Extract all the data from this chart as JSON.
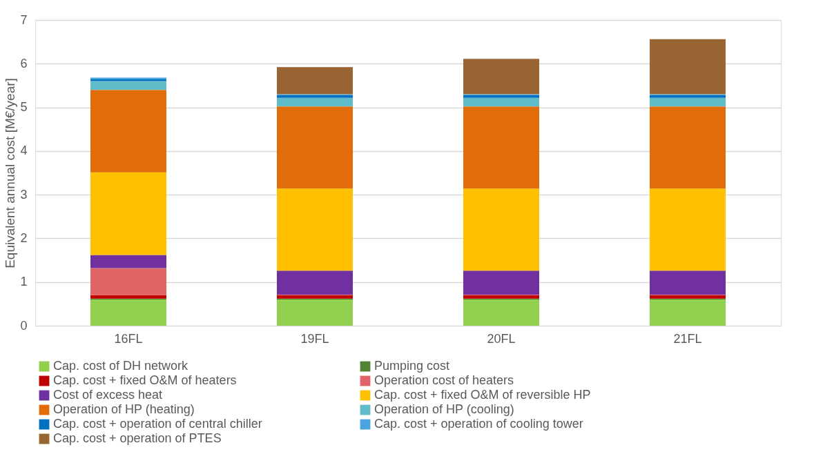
{
  "chart_data": {
    "type": "bar",
    "stacked": true,
    "ylabel": "Equivalent annual cost [M€/year]",
    "categories": [
      "16FL",
      "19FL",
      "20FL",
      "21FL"
    ],
    "ylim": [
      0,
      7
    ],
    "yticks": [
      0,
      1,
      2,
      3,
      4,
      5,
      6,
      7
    ],
    "grid": "y",
    "legend": "bottom",
    "series": [
      {
        "name": "Cap. cost of DH network",
        "color": "#92d050",
        "values": [
          0.6,
          0.6,
          0.6,
          0.6
        ]
      },
      {
        "name": "Pumping cost",
        "color": "#548235",
        "values": [
          0.02,
          0.02,
          0.02,
          0.02
        ]
      },
      {
        "name": "Cap. cost + fixed O&M of heaters",
        "color": "#c00000",
        "values": [
          0.08,
          0.08,
          0.08,
          0.08
        ]
      },
      {
        "name": "Operation cost of heaters",
        "color": "#e06666",
        "values": [
          0.62,
          0.01,
          0.01,
          0.01
        ]
      },
      {
        "name": "Cost of excess heat",
        "color": "#7030a0",
        "values": [
          0.3,
          0.55,
          0.55,
          0.55
        ]
      },
      {
        "name": "Cap. cost + fixed O&M of reversible HP",
        "color": "#ffc000",
        "values": [
          1.89,
          1.88,
          1.88,
          1.88
        ]
      },
      {
        "name": "Operation of HP (heating)",
        "color": "#e36c0a",
        "values": [
          1.89,
          1.88,
          1.88,
          1.88
        ]
      },
      {
        "name": "Operation of HP (cooling)",
        "color": "#5fbcc8",
        "values": [
          0.2,
          0.2,
          0.2,
          0.2
        ]
      },
      {
        "name": "Cap. cost + operation of central chiller",
        "color": "#0070c0",
        "values": [
          0.04,
          0.06,
          0.06,
          0.06
        ]
      },
      {
        "name": "Cap. cost + operation of cooling tower",
        "color": "#4aa3df",
        "values": [
          0.04,
          0.02,
          0.02,
          0.02
        ]
      },
      {
        "name": "Cap. cost + operation of PTES",
        "color": "#996633",
        "values": [
          0.0,
          0.62,
          0.81,
          1.26
        ]
      }
    ]
  }
}
